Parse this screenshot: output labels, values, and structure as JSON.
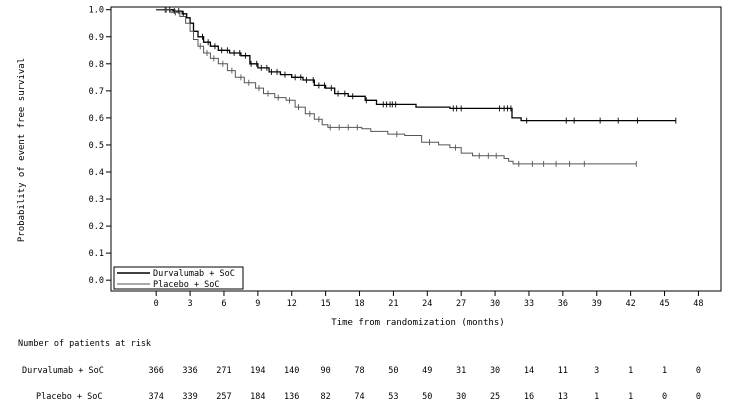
{
  "chart_data": {
    "type": "line",
    "subtype": "kaplan-meier",
    "title": "",
    "xlabel": "Time from randomization (months)",
    "ylabel": "Probability of event free survival",
    "xlim": [
      -4,
      50
    ],
    "ylim": [
      -0.04,
      1.01
    ],
    "x_ticks": [
      0,
      3,
      6,
      9,
      12,
      15,
      18,
      21,
      24,
      27,
      30,
      33,
      36,
      39,
      42,
      45,
      48
    ],
    "y_ticks": [
      "0.0",
      "0.1",
      "0.2",
      "0.3",
      "0.4",
      "0.5",
      "0.6",
      "0.7",
      "0.8",
      "0.9",
      "1.0"
    ],
    "legend_position": "bottom-left",
    "series": [
      {
        "name": "Durvalumab + SoC",
        "color": "#000000",
        "steps": [
          [
            0,
            1.0
          ],
          [
            1.5,
            0.995
          ],
          [
            2.3,
            0.985
          ],
          [
            2.7,
            0.97
          ],
          [
            3.0,
            0.95
          ],
          [
            3.3,
            0.92
          ],
          [
            3.7,
            0.9
          ],
          [
            4.2,
            0.88
          ],
          [
            4.8,
            0.865
          ],
          [
            5.5,
            0.85
          ],
          [
            6.5,
            0.84
          ],
          [
            7.5,
            0.83
          ],
          [
            8.3,
            0.8
          ],
          [
            9.0,
            0.785
          ],
          [
            10.0,
            0.77
          ],
          [
            11.0,
            0.76
          ],
          [
            12.0,
            0.75
          ],
          [
            13.0,
            0.74
          ],
          [
            14.0,
            0.72
          ],
          [
            15.0,
            0.71
          ],
          [
            15.8,
            0.69
          ],
          [
            17.0,
            0.68
          ],
          [
            18.5,
            0.665
          ],
          [
            19.5,
            0.65
          ],
          [
            23.0,
            0.64
          ],
          [
            26.0,
            0.635
          ],
          [
            31.5,
            0.6
          ],
          [
            32.3,
            0.59
          ],
          [
            46.0,
            0.59
          ]
        ],
        "censors": [
          0.8,
          1.2,
          1.6,
          2.0,
          2.4,
          4.1,
          4.6,
          5.2,
          5.8,
          6.3,
          6.9,
          7.4,
          7.9,
          8.4,
          8.9,
          9.3,
          9.8,
          10.2,
          10.7,
          11.4,
          12.3,
          12.8,
          13.3,
          13.9,
          14.4,
          14.9,
          15.5,
          16.1,
          16.7,
          17.4,
          18.6,
          20.1,
          20.4,
          20.7,
          20.9,
          21.2,
          26.3,
          26.6,
          27.0,
          30.4,
          30.8,
          31.1,
          31.4,
          32.8,
          36.3,
          37.0,
          39.3,
          40.9,
          42.6,
          46.0
        ],
        "risk": [
          366,
          336,
          271,
          194,
          140,
          90,
          78,
          50,
          49,
          31,
          30,
          14,
          11,
          3,
          1,
          1,
          0
        ]
      },
      {
        "name": "Placebo + SoC",
        "color": "#555555",
        "steps": [
          [
            0,
            1.0
          ],
          [
            1.3,
            0.99
          ],
          [
            2.1,
            0.975
          ],
          [
            2.6,
            0.95
          ],
          [
            3.0,
            0.92
          ],
          [
            3.3,
            0.89
          ],
          [
            3.7,
            0.865
          ],
          [
            4.2,
            0.84
          ],
          [
            4.8,
            0.82
          ],
          [
            5.5,
            0.8
          ],
          [
            6.3,
            0.775
          ],
          [
            7.0,
            0.75
          ],
          [
            7.8,
            0.73
          ],
          [
            8.8,
            0.71
          ],
          [
            9.5,
            0.69
          ],
          [
            10.5,
            0.675
          ],
          [
            11.5,
            0.665
          ],
          [
            12.3,
            0.64
          ],
          [
            13.2,
            0.615
          ],
          [
            14.0,
            0.595
          ],
          [
            14.7,
            0.575
          ],
          [
            15.2,
            0.565
          ],
          [
            18.2,
            0.56
          ],
          [
            19.0,
            0.55
          ],
          [
            20.5,
            0.54
          ],
          [
            22.0,
            0.535
          ],
          [
            23.5,
            0.51
          ],
          [
            25.0,
            0.5
          ],
          [
            26.0,
            0.49
          ],
          [
            27.0,
            0.47
          ],
          [
            28.0,
            0.46
          ],
          [
            30.8,
            0.45
          ],
          [
            31.2,
            0.44
          ],
          [
            31.6,
            0.43
          ],
          [
            42.5,
            0.43
          ]
        ],
        "censors": [
          0.9,
          1.7,
          3.9,
          4.5,
          5.1,
          5.9,
          6.7,
          7.5,
          8.2,
          9.1,
          9.9,
          10.8,
          11.8,
          12.6,
          13.6,
          14.4,
          15.4,
          16.2,
          17.0,
          17.8,
          21.3,
          24.2,
          26.5,
          28.6,
          29.4,
          30.1,
          32.1,
          33.3,
          34.3,
          35.4,
          36.6,
          37.9,
          42.5
        ],
        "risk": [
          374,
          339,
          257,
          184,
          136,
          82,
          74,
          53,
          50,
          30,
          25,
          16,
          13,
          1,
          1,
          0,
          0
        ]
      }
    ],
    "risk_table": {
      "title": "Number of patients at risk",
      "times": [
        0,
        3,
        6,
        9,
        12,
        15,
        18,
        21,
        24,
        27,
        30,
        33,
        36,
        39,
        42,
        45,
        48
      ]
    }
  }
}
